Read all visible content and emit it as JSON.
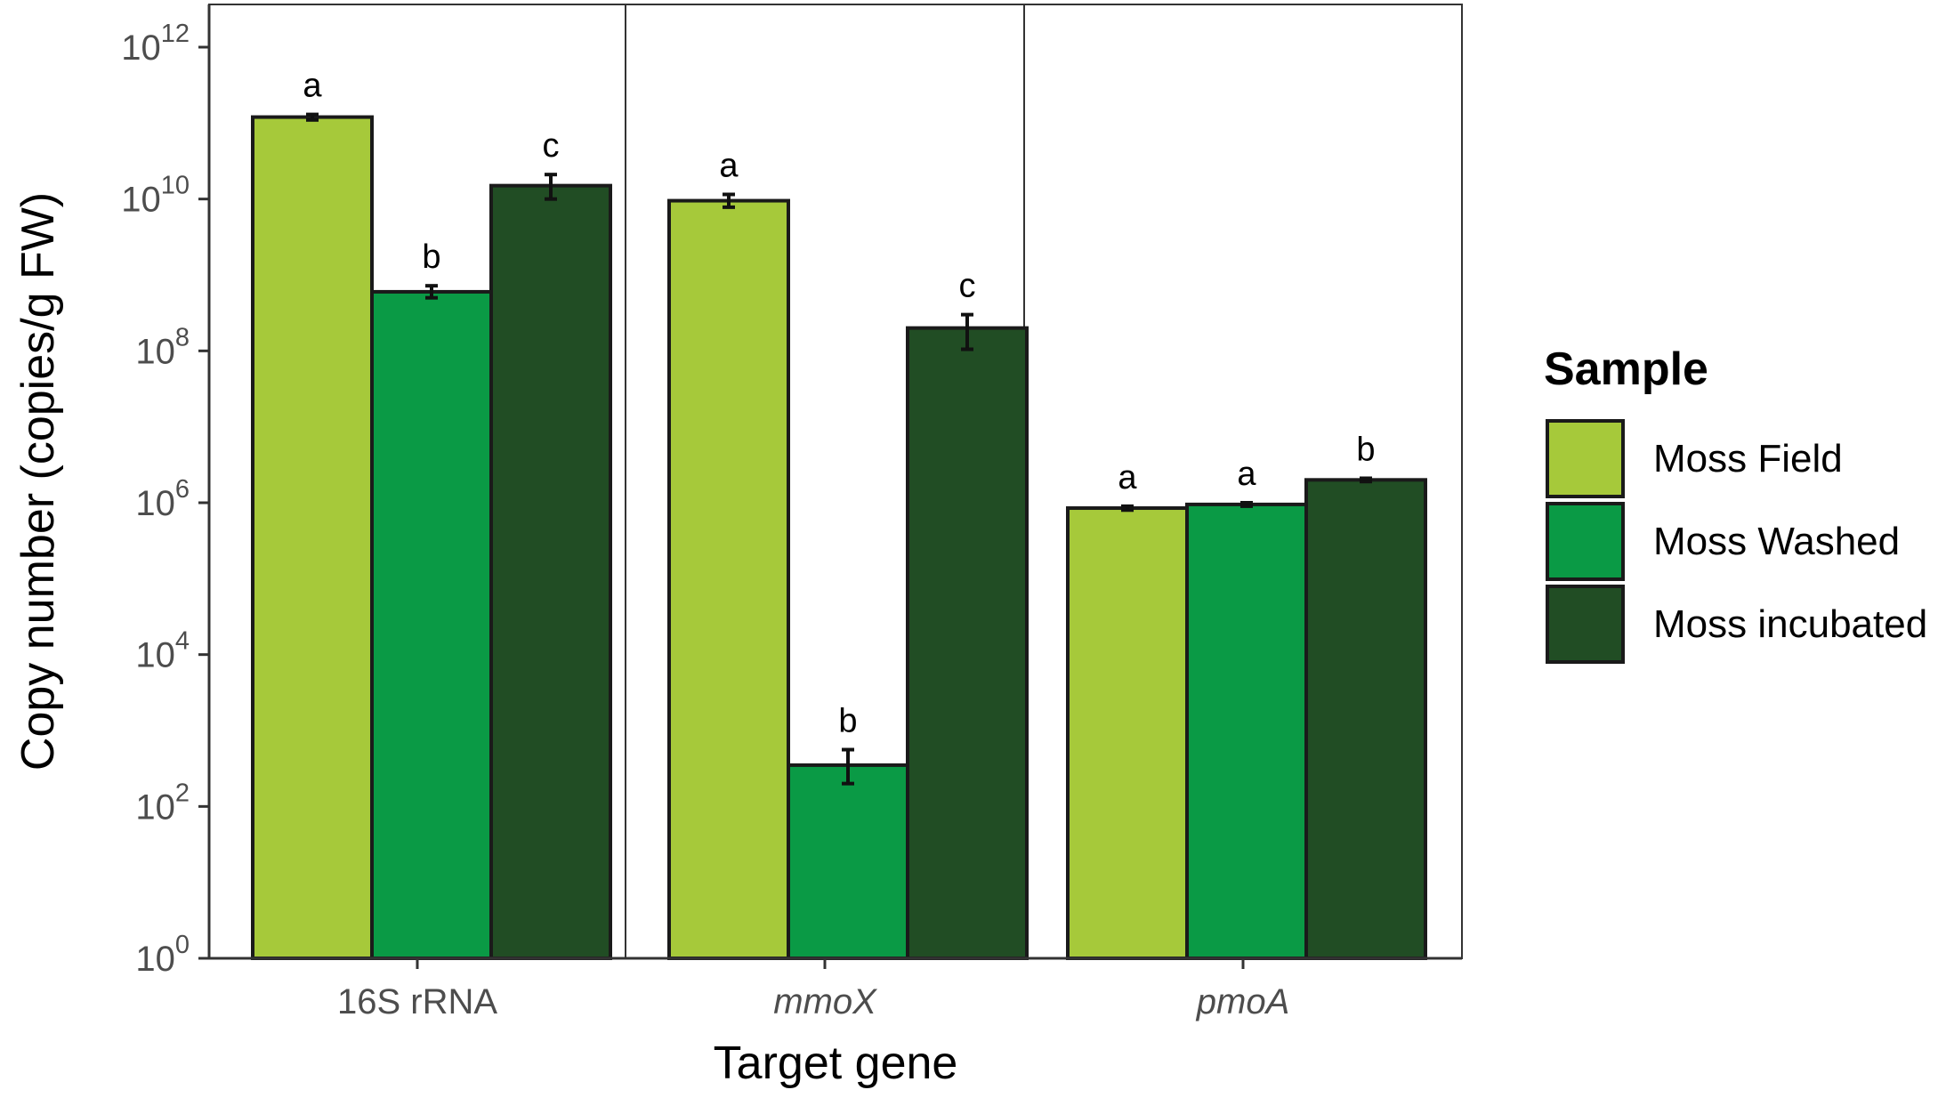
{
  "chart_data": {
    "type": "bar",
    "scale": "log10",
    "ylim": [
      1,
      1000000000000.0
    ],
    "y_tick_exponents": [
      0,
      2,
      4,
      6,
      8,
      10,
      12
    ],
    "y_tick_base": "10",
    "ylabel": "Copy number (copies/g FW)",
    "xlabel": "Target gene",
    "categories": [
      "16S rRNA",
      "mmoX",
      "pmoA"
    ],
    "category_italic": [
      false,
      true,
      true
    ],
    "series": [
      {
        "name": "Moss Field",
        "color": "#a6c93a",
        "values": [
          120000000000.0,
          9500000000.0,
          850000.0
        ],
        "err_low": [
          110000000000.0,
          7800000000.0,
          800000.0
        ],
        "err_high": [
          130000000000.0,
          11500000000.0,
          900000.0
        ],
        "labels": [
          "a",
          "a",
          "a"
        ]
      },
      {
        "name": "Moss Washed",
        "color": "#0a9a45",
        "values": [
          600000000.0,
          350,
          950000.0
        ],
        "err_low": [
          500000000.0,
          200,
          900000.0
        ],
        "err_high": [
          720000000.0,
          560,
          1000000.0
        ],
        "labels": [
          "b",
          "b",
          "a"
        ]
      },
      {
        "name": "Moss incubated",
        "color": "#214d24",
        "values": [
          15000000000.0,
          200000000.0,
          2000000.0
        ],
        "err_low": [
          10000000000.0,
          105000000.0,
          1900000.0
        ],
        "err_high": [
          21000000000.0,
          300000000.0,
          2100000.0
        ],
        "labels": [
          "c",
          "c",
          "b"
        ]
      }
    ],
    "legend": {
      "title": "Sample",
      "position": "right"
    },
    "facet_separators": true
  }
}
